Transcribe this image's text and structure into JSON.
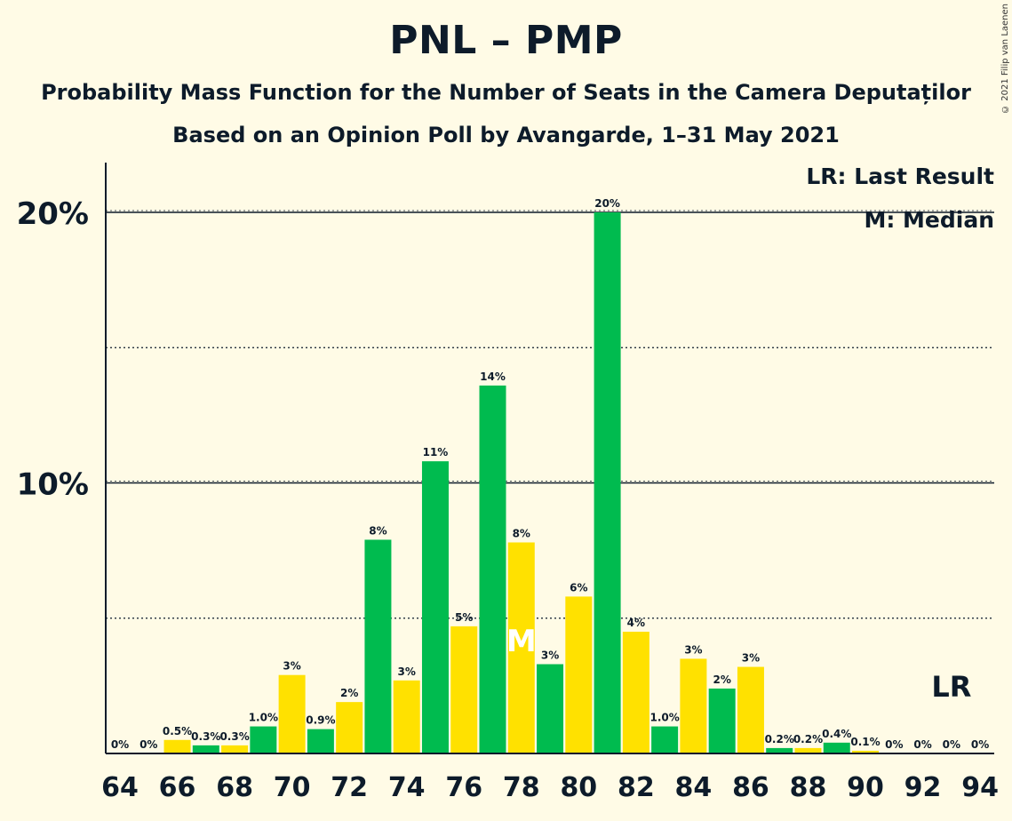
{
  "header": {
    "title": "PNL – PMP",
    "subtitle": "Probability Mass Function for the Number of Seats in the Camera Deputaților",
    "subtitle2": "Based on an Opinion Poll by Avangarde, 1–31 May 2021",
    "copyright": "© 2021 Filip van Laenen"
  },
  "legend": {
    "last_result": "LR: Last Result",
    "median": "M: Median"
  },
  "colors": {
    "green": "#00bb4f",
    "yellow": "#ffe100",
    "background": "#fffbe6",
    "text": "#0d1b2a"
  },
  "chart_data": {
    "type": "bar",
    "x": [
      64,
      65,
      66,
      67,
      68,
      69,
      70,
      71,
      72,
      73,
      74,
      75,
      76,
      77,
      78,
      79,
      80,
      81,
      82,
      83,
      84,
      85,
      86,
      87,
      88,
      89,
      90,
      91,
      92,
      93,
      94
    ],
    "values": [
      0,
      0,
      0.5,
      0.3,
      0.3,
      1.0,
      2.9,
      0.9,
      1.9,
      7.9,
      2.7,
      10.8,
      4.7,
      13.6,
      7.8,
      3.3,
      5.8,
      20.0,
      4.5,
      1.0,
      3.5,
      2.4,
      3.2,
      0.2,
      0.2,
      0.4,
      0.1,
      0,
      0,
      0,
      0
    ],
    "labels": [
      "0%",
      "0%",
      "0.5%",
      "0.3%",
      "0.3%",
      "1.0%",
      "3%",
      "0.9%",
      "2%",
      "8%",
      "3%",
      "11%",
      "5%",
      "14%",
      "8%",
      "3%",
      "6%",
      "20%",
      "4%",
      "1.0%",
      "3%",
      "2%",
      "3%",
      "0.2%",
      "0.2%",
      "0.4%",
      "0.1%",
      "0%",
      "0%",
      "0%",
      "0%"
    ],
    "x_tick_labels": [
      "64",
      "66",
      "68",
      "70",
      "72",
      "74",
      "76",
      "78",
      "80",
      "82",
      "84",
      "86",
      "88",
      "90",
      "92",
      "94"
    ],
    "y_tick_labels": [
      "10%",
      "20%"
    ],
    "ylim": [
      0,
      21.5
    ],
    "median_seat": 78,
    "median_marker": "M",
    "last_result_seat": 93,
    "last_result_marker": "LR"
  }
}
